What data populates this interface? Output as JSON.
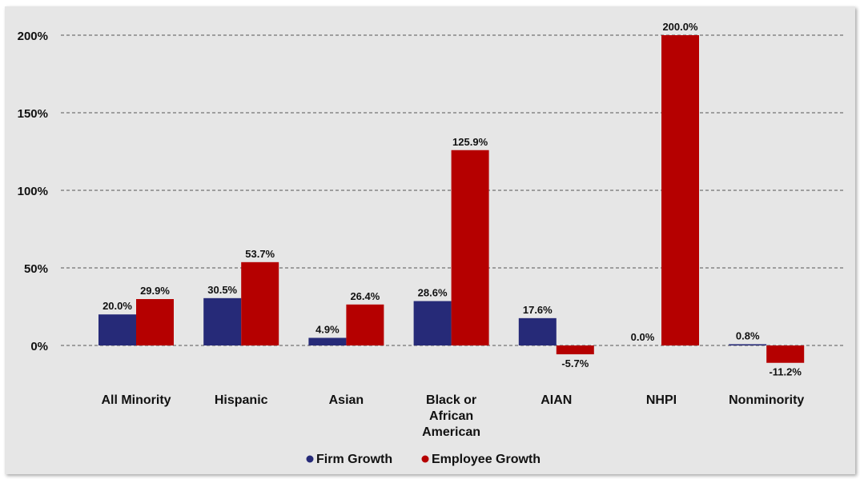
{
  "chart_data": {
    "type": "bar",
    "title": "",
    "xlabel": "",
    "ylabel": "",
    "categories": [
      [
        "All Minority"
      ],
      [
        "Hispanic"
      ],
      [
        "Asian"
      ],
      [
        "Black or",
        "African",
        "American"
      ],
      [
        "AIAN"
      ],
      [
        "NHPI"
      ],
      [
        "Nonminority"
      ]
    ],
    "series": [
      {
        "name": "Firm Growth",
        "color": "#262a78",
        "values": [
          20.0,
          30.5,
          4.9,
          28.6,
          17.6,
          0.0,
          0.8
        ],
        "labels": [
          "20.0%",
          "30.5%",
          "4.9%",
          "28.6%",
          "17.6%",
          "0.0%",
          "0.8%"
        ]
      },
      {
        "name": "Employee Growth",
        "color": "#b50000",
        "values": [
          29.9,
          53.7,
          26.4,
          125.9,
          -5.7,
          200.0,
          -11.2
        ],
        "labels": [
          "29.9%",
          "53.7%",
          "26.4%",
          "125.9%",
          "-5.7%",
          "200.0%",
          "-11.2%"
        ]
      }
    ],
    "yticks": [
      {
        "value": 0,
        "label": "0%"
      },
      {
        "value": 50,
        "label": "50%"
      },
      {
        "value": 100,
        "label": "100%"
      },
      {
        "value": 150,
        "label": "150%"
      },
      {
        "value": 200,
        "label": "200%"
      }
    ],
    "ylim": [
      -20,
      200
    ],
    "grid": "dashed-horizontal",
    "legend_position": "bottom-center"
  }
}
